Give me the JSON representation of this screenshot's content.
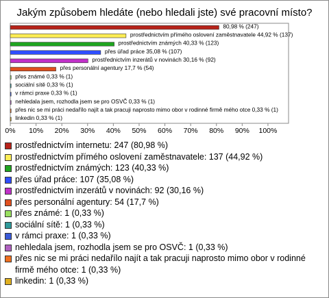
{
  "chart_data": {
    "type": "hbar",
    "title": "Jakým způsobem hledáte (nebo hledali jste) své pracovní místo?",
    "categories": [
      "prostřednictvím internetu: 247 (80,98 %)",
      "prostřednictvím přímého oslovení zaměstnavatele: 137 (44,92 %)",
      "prostřednictvím známých: 123 (40,33 %)",
      "přes úřad práce: 107 (35,08 %)",
      "prostřednictvím inzerátů v novinách: 92 (30,16 %)",
      "přes personální agentury: 54 (17,7 %)",
      "přes známé: 1 (0,33 %)",
      "sociální sítě: 1 (0,33 %)",
      "v rámci praxe: 1 (0,33 %)",
      "nehledala jsem, rozhodla jsem se pro OSVČ: 1 (0,33 %)",
      "přes nic se mi práci nedařílo najít a tak pracuji naprosto mimo obor v rodinné firmě mého otce: 1 (0,33 %)",
      "linkedin: 1 (0,33 %)"
    ],
    "values": [
      80.98,
      44.92,
      40.33,
      35.08,
      30.16,
      17.7,
      0.33,
      0.33,
      0.33,
      0.33,
      0.33,
      0.33
    ],
    "value_labels": [
      "80,98 % (247)",
      "prostřednictvím přímého oslovení zaměstnavatele 44,92 % (137)",
      "prostřednictvím známých 40,33 % (123)",
      "přes úřad práce 35,08 % (107)",
      "prostřednictvím inzerátů v novinách 30,16 % (92)",
      "přes personální agentury 17,7 % (54)",
      "přes známé 0,33 % (1)",
      "sociální sítě 0,33 % (1)",
      "v rámci praxe 0,33 % (1)",
      "nehledala jsem, rozhodla jsem se pro OSVČ 0,33 % (1)",
      "přes nic se mi práci nedařílo najít a tak pracuji naprosto mimo obor v rodinné firmě mého otce 0,33 % (1)",
      "linkedin 0,33 % (1)"
    ],
    "colors": [
      "#b8231a",
      "#ffee55",
      "#1fa51f",
      "#2f4fff",
      "#c030c8",
      "#e0501e",
      "#99e060",
      "#2f9a9a",
      "#3a5ad8",
      "#b060c0",
      "#f07020",
      "#e0b020"
    ],
    "xlim": [
      0,
      108
    ],
    "xticks": [
      {
        "value": 0,
        "label": "0%"
      },
      {
        "value": 10,
        "label": "10%"
      },
      {
        "value": 20,
        "label": "20%"
      },
      {
        "value": 30,
        "label": "30%"
      },
      {
        "value": 40,
        "label": "40%"
      },
      {
        "value": 50,
        "label": "50%"
      },
      {
        "value": 60,
        "label": "60%"
      },
      {
        "value": 70,
        "label": "70%"
      },
      {
        "value": 80,
        "label": "80%"
      },
      {
        "value": 90,
        "label": "90%"
      },
      {
        "value": 100,
        "label": "100%"
      }
    ]
  }
}
